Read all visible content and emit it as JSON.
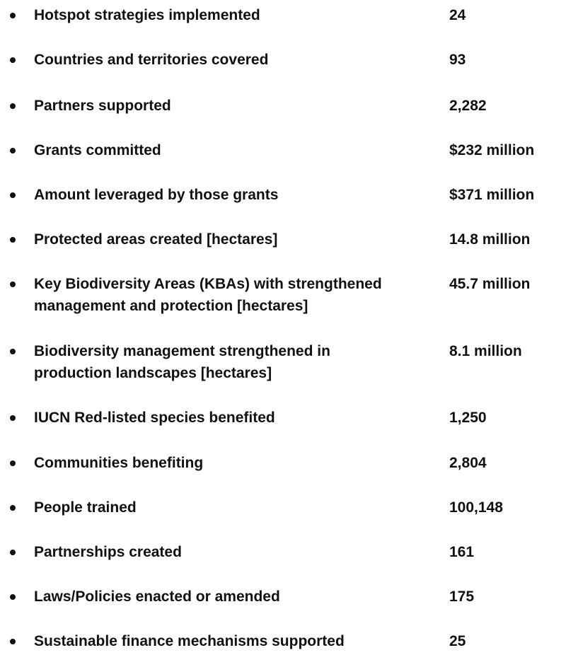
{
  "stats": [
    {
      "label": "Hotspot strategies implemented",
      "value": "24"
    },
    {
      "label": "Countries and territories covered",
      "value": "93"
    },
    {
      "label": "Partners supported",
      "value": "2,282"
    },
    {
      "label": "Grants committed",
      "value": "$232 million"
    },
    {
      "label": "Amount leveraged by those grants",
      "value": "$371 million"
    },
    {
      "label": "Protected areas created [hectares]",
      "value": "14.8 million"
    },
    {
      "label": "Key Biodiversity Areas (KBAs) with strengthened management and protection [hectares]",
      "value": "45.7 million"
    },
    {
      "label": "Biodiversity management strengthened in production landscapes [hectares]",
      "value": "8.1 million"
    },
    {
      "label": "IUCN Red-listed species benefited",
      "value": "1,250"
    },
    {
      "label": "Communities benefiting",
      "value": "2,804"
    },
    {
      "label": "People trained",
      "value": "100,148"
    },
    {
      "label": "Partnerships created",
      "value": "161"
    },
    {
      "label": "Laws/Policies enacted or amended",
      "value": "175"
    },
    {
      "label": "Sustainable finance mechanisms supported",
      "value": "25"
    }
  ]
}
